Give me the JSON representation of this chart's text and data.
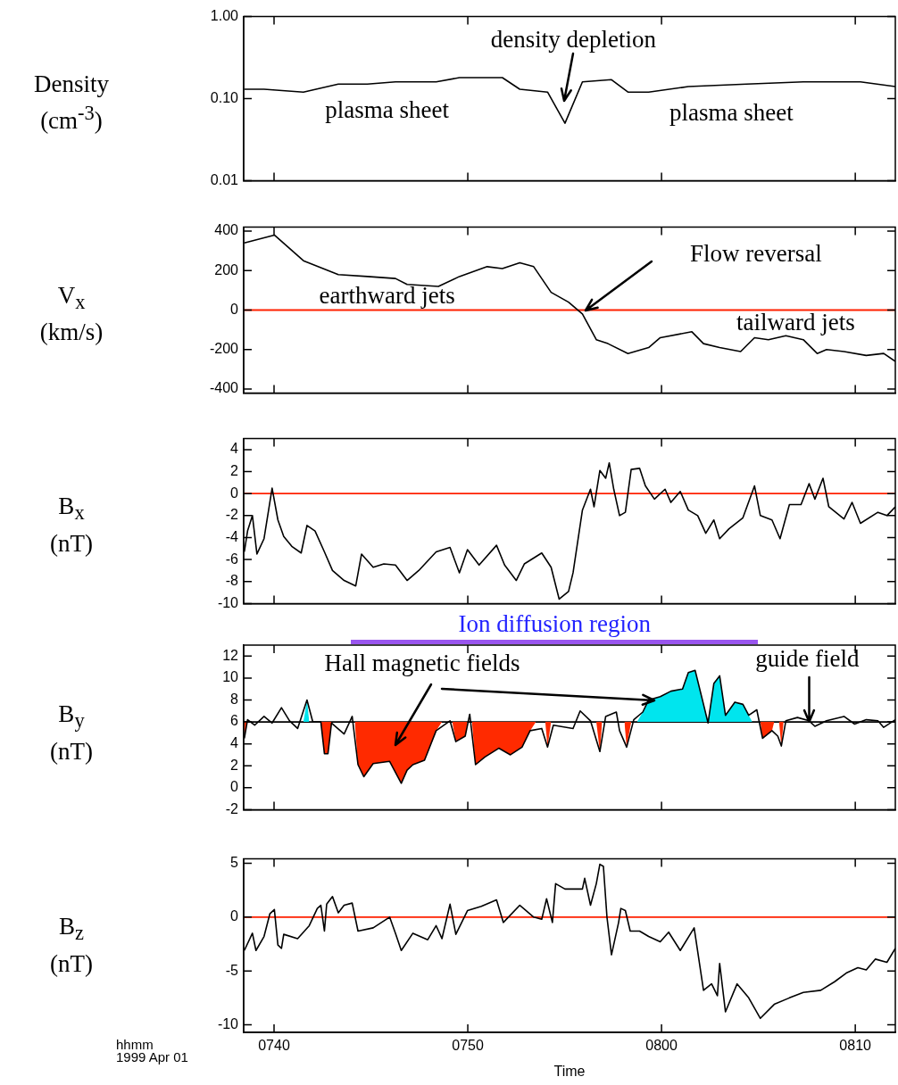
{
  "chart_data": [
    {
      "type": "line",
      "ylabel": "Density (cm$^{-3}$)",
      "log": "y",
      "xlim": [
        "1999-04-01T07:38:26",
        "1999-04-01T08:12:04"
      ],
      "xticks": [
        {
          "value": "1999-04-01T07:40",
          "label": null
        },
        {
          "value": "1999-04-01T07:50",
          "label": null
        },
        {
          "value": "1999-04-01T08:00",
          "label": null
        },
        {
          "value": "1999-04-01T08:10",
          "label": null
        }
      ],
      "ylim": [
        0.01,
        1
      ],
      "yticks": [
        {
          "value": 0.01,
          "label": "0.01"
        },
        {
          "value": 0.1,
          "label": "0.10"
        },
        {
          "value": 1,
          "label": "1.00"
        }
      ],
      "tick_labels": "y",
      "series": [
        {
          "color": "#000000",
          "x": [
            "1999-04-01T07:38:28",
            "1999-04-01T07:39:29",
            "1999-04-01T07:41:31",
            "1999-04-01T07:43:19",
            "1999-04-01T07:44:49",
            "1999-04-01T07:46:16",
            "1999-04-01T07:48:22",
            "1999-04-01T07:49:34",
            "1999-04-01T07:51:47",
            "1999-04-01T07:52:41",
            "1999-04-01T07:54:07",
            "1999-04-01T07:55:01",
            "1999-04-01T07:55:55",
            "1999-04-01T07:57:25",
            "1999-04-01T07:58:16",
            "1999-04-01T07:59:20",
            "1999-04-01T08:01:23",
            "1999-04-01T08:04:23",
            "1999-04-01T08:07:19",
            "1999-04-01T08:10:16",
            "1999-04-01T08:12:04"
          ],
          "values": [
            0.13,
            0.13,
            0.12,
            0.15,
            0.15,
            0.16,
            0.16,
            0.18,
            0.18,
            0.13,
            0.12,
            0.05,
            0.16,
            0.17,
            0.12,
            0.12,
            0.14,
            0.15,
            0.16,
            0.16,
            0.14
          ]
        }
      ],
      "annotations": [
        "plasma sheet",
        "density depletion",
        "plasma sheet"
      ]
    },
    {
      "type": "line",
      "ylabel": "V$_{x}$ (km/s)",
      "xlim": [
        "1999-04-01T07:38:26",
        "1999-04-01T08:12:04"
      ],
      "xticks": [
        {
          "value": "1999-04-01T07:40",
          "label": null
        },
        {
          "value": "1999-04-01T07:50",
          "label": null
        },
        {
          "value": "1999-04-01T08:00",
          "label": null
        },
        {
          "value": "1999-04-01T08:10",
          "label": null
        }
      ],
      "ylim": [
        -420,
        420
      ],
      "yticks": [
        -400,
        -200,
        0,
        200,
        400
      ],
      "tick_labels": "y",
      "series": [
        {
          "color": "#000000",
          "x": [
            "1999-04-01T07:38:28",
            "1999-04-01T07:40:01",
            "1999-04-01T07:41:31",
            "1999-04-01T07:43:19",
            "1999-04-01T07:44:49",
            "1999-04-01T07:46:16",
            "1999-04-01T07:46:52",
            "1999-04-01T07:48:29",
            "1999-04-01T07:49:34",
            "1999-04-01T07:51:00",
            "1999-04-01T07:51:47",
            "1999-04-01T07:52:41",
            "1999-04-01T07:53:24",
            "1999-04-01T07:54:18",
            "1999-04-01T07:55:12",
            "1999-04-01T07:55:55",
            "1999-04-01T07:56:38",
            "1999-04-01T07:57:14",
            "1999-04-01T07:58:16",
            "1999-04-01T07:59:20",
            "1999-04-01T07:59:56",
            "1999-04-01T08:01:34",
            "1999-04-01T08:02:10",
            "1999-04-01T08:03:00",
            "1999-04-01T08:04:05",
            "1999-04-01T08:04:48",
            "1999-04-01T08:05:31",
            "1999-04-01T08:06:25",
            "1999-04-01T08:07:19",
            "1999-04-01T08:08:02",
            "1999-04-01T08:08:31",
            "1999-04-01T08:09:25",
            "1999-04-01T08:10:34",
            "1999-04-01T08:11:28",
            "1999-04-01T08:12:04"
          ],
          "values": [
            340,
            380,
            250,
            180,
            170,
            160,
            130,
            120,
            170,
            220,
            210,
            240,
            220,
            90,
            40,
            -20,
            -150,
            -170,
            -220,
            -190,
            -140,
            -110,
            -170,
            -190,
            -210,
            -140,
            -150,
            -130,
            -150,
            -220,
            -200,
            -210,
            -230,
            -220,
            -260
          ]
        }
      ],
      "ref_lines": [
        {
          "axis": "y",
          "value": 0,
          "color": "#ff2000"
        }
      ],
      "annotations": [
        "earthward jets",
        "Flow reversal",
        "tailward jets"
      ]
    },
    {
      "type": "line",
      "ylabel": "B$_{x}$ (nT)",
      "xlim": [
        "1999-04-01T07:38:26",
        "1999-04-01T08:12:04"
      ],
      "xticks": [
        {
          "value": "1999-04-01T07:40",
          "label": null
        },
        {
          "value": "1999-04-01T07:50",
          "label": null
        },
        {
          "value": "1999-04-01T08:00",
          "label": null
        },
        {
          "value": "1999-04-01T08:10",
          "label": null
        }
      ],
      "ylim": [
        -10,
        5
      ],
      "yticks": [
        -10,
        -8,
        -6,
        -4,
        -2,
        0,
        2,
        4
      ],
      "tick_labels": "y",
      "series": [
        {
          "color": "#000000",
          "x": [
            "1999-04-01T07:38:28",
            "1999-04-01T07:38:38",
            "1999-04-01T07:38:53",
            "1999-04-01T07:39:07",
            "1999-04-01T07:39:29",
            "1999-04-01T07:39:54",
            "1999-04-01T07:40:12",
            "1999-04-01T07:40:30",
            "1999-04-01T07:40:55",
            "1999-04-01T07:41:24",
            "1999-04-01T07:41:42",
            "1999-04-01T07:42:07",
            "1999-04-01T07:42:36",
            "1999-04-01T07:43:01",
            "1999-04-01T07:43:37",
            "1999-04-01T07:44:13",
            "1999-04-01T07:44:31",
            "1999-04-01T07:45:07",
            "1999-04-01T07:45:40",
            "1999-04-01T07:46:16",
            "1999-04-01T07:46:52",
            "1999-04-01T07:47:28",
            "1999-04-01T07:48:22",
            "1999-04-01T07:49:05",
            "1999-04-01T07:49:34",
            "1999-04-01T07:49:59",
            "1999-04-01T07:50:35",
            "1999-04-01T07:51:29",
            "1999-04-01T07:51:54",
            "1999-04-01T07:52:30",
            "1999-04-01T07:52:55",
            "1999-04-01T07:53:49",
            "1999-04-01T07:54:18",
            "1999-04-01T07:54:43",
            "1999-04-01T07:55:12",
            "1999-04-01T07:55:26",
            "1999-04-01T07:55:55",
            "1999-04-01T07:56:20",
            "1999-04-01T07:56:31",
            "1999-04-01T07:56:49",
            "1999-04-01T07:57:07",
            "1999-04-01T07:57:18",
            "1999-04-01T07:57:32",
            "1999-04-01T07:57:50",
            "1999-04-01T07:58:08",
            "1999-04-01T07:58:26",
            "1999-04-01T07:58:52",
            "1999-04-01T07:59:10",
            "1999-04-01T07:59:38",
            "1999-04-01T08:00:11",
            "1999-04-01T08:00:29",
            "1999-04-01T08:00:58",
            "1999-04-01T08:01:23",
            "1999-04-01T08:01:52",
            "1999-04-01T08:02:17",
            "1999-04-01T08:02:42",
            "1999-04-01T08:03:00",
            "1999-04-01T08:03:29",
            "1999-04-01T08:04:12",
            "1999-04-01T08:04:48",
            "1999-04-01T08:05:06",
            "1999-04-01T08:05:42",
            "1999-04-01T08:06:07",
            "1999-04-01T08:06:36",
            "1999-04-01T08:07:12",
            "1999-04-01T08:07:37",
            "1999-04-01T08:07:55",
            "1999-04-01T08:08:20",
            "1999-04-01T08:08:38",
            "1999-04-01T08:09:25",
            "1999-04-01T08:09:50",
            "1999-04-01T08:10:16",
            "1999-04-01T08:11:10",
            "1999-04-01T08:11:38",
            "1999-04-01T08:12:04"
          ],
          "values": [
            -5.3,
            -3.4,
            -2.0,
            -5.5,
            -4.1,
            0.5,
            -2.4,
            -3.9,
            -4.8,
            -5.4,
            -2.9,
            -3.4,
            -5.3,
            -7.0,
            -7.9,
            -8.4,
            -5.5,
            -6.7,
            -6.4,
            -6.5,
            -7.9,
            -7.0,
            -5.3,
            -4.9,
            -7.2,
            -5.1,
            -6.5,
            -4.7,
            -6.5,
            -7.9,
            -6.4,
            -5.4,
            -6.7,
            -9.6,
            -8.9,
            -7.2,
            -1.5,
            0.4,
            -1.2,
            2.1,
            1.4,
            2.8,
            0.4,
            -2.0,
            -1.7,
            2.2,
            2.3,
            0.7,
            -0.5,
            0.4,
            -0.8,
            0.2,
            -1.5,
            -2.0,
            -3.6,
            -2.4,
            -4.1,
            -3.2,
            -2.2,
            0.7,
            -2.0,
            -2.4,
            -4.1,
            -1.0,
            -1.0,
            0.9,
            -0.5,
            1.4,
            -1.2,
            -2.3,
            -0.8,
            -2.7,
            -1.7,
            -2.0,
            -1.2
          ]
        }
      ],
      "ref_lines": [
        {
          "axis": "y",
          "value": 0,
          "color": "#ff2000"
        }
      ]
    },
    {
      "type": "line",
      "ylabel": "B$_{y}$ (nT)",
      "xlim": [
        "1999-04-01T07:38:26",
        "1999-04-01T08:12:04"
      ],
      "xticks": [
        {
          "value": "1999-04-01T07:40",
          "label": null
        },
        {
          "value": "1999-04-01T07:50",
          "label": null
        },
        {
          "value": "1999-04-01T08:00",
          "label": null
        },
        {
          "value": "1999-04-01T08:10",
          "label": null
        }
      ],
      "ylim": [
        -2,
        13
      ],
      "yticks": [
        -2,
        0,
        2,
        4,
        6,
        8,
        10,
        12
      ],
      "tick_labels": "y",
      "series": [
        {
          "color": "#000000",
          "x": [
            "1999-04-01T07:38:28",
            "1999-04-01T07:38:38",
            "1999-04-01T07:39:00",
            "1999-04-01T07:39:29",
            "1999-04-01T07:39:54",
            "1999-04-01T07:40:23",
            "1999-04-01T07:40:48",
            "1999-04-01T07:41:13",
            "1999-04-01T07:41:42",
            "1999-04-01T07:42:00",
            "1999-04-01T07:42:25",
            "1999-04-01T07:42:36",
            "1999-04-01T07:42:47",
            "1999-04-01T07:42:58",
            "1999-04-01T07:43:37",
            "1999-04-01T07:44:02",
            "1999-04-01T07:44:20",
            "1999-04-01T07:44:38",
            "1999-04-01T07:45:07",
            "1999-04-01T07:45:58",
            "1999-04-01T07:46:34",
            "1999-04-01T07:46:52",
            "1999-04-01T07:47:10",
            "1999-04-01T07:47:46",
            "1999-04-01T07:48:22",
            "1999-04-01T07:49:05",
            "1999-04-01T07:49:23",
            "1999-04-01T07:49:52",
            "1999-04-01T07:50:06",
            "1999-04-01T07:50:24",
            "1999-04-01T07:50:53",
            "1999-04-01T07:51:36",
            "1999-04-01T07:52:12",
            "1999-04-01T07:52:48",
            "1999-04-01T07:53:13",
            "1999-04-01T07:53:49",
            "1999-04-01T07:54:07",
            "1999-04-01T07:54:25",
            "1999-04-01T07:55:26",
            "1999-04-01T07:55:48",
            "1999-04-01T07:56:20",
            "1999-04-01T07:56:49",
            "1999-04-01T07:57:07",
            "1999-04-01T07:57:40",
            "1999-04-01T07:57:50",
            "1999-04-01T07:58:12",
            "1999-04-01T07:58:34",
            "1999-04-01T07:59:02",
            "1999-04-01T07:59:20",
            "1999-04-01T07:59:56",
            "1999-04-01T08:00:29",
            "1999-04-01T08:01:05",
            "1999-04-01T08:01:23",
            "1999-04-01T08:01:44",
            "1999-04-01T08:02:10",
            "1999-04-01T08:02:24",
            "1999-04-01T08:02:42",
            "1999-04-01T08:03:00",
            "1999-04-01T08:03:18",
            "1999-04-01T08:03:47",
            "1999-04-01T08:04:12",
            "1999-04-01T08:04:30",
            "1999-04-01T08:04:55",
            "1999-04-01T08:05:13",
            "1999-04-01T08:05:42",
            "1999-04-01T08:06:00",
            "1999-04-01T08:06:11",
            "1999-04-01T08:06:25",
            "1999-04-01T08:07:01",
            "1999-04-01T08:07:37",
            "1999-04-01T08:07:55",
            "1999-04-01T08:08:31",
            "1999-04-01T08:09:25",
            "1999-04-01T08:09:58",
            "1999-04-01T08:10:34",
            "1999-04-01T08:11:10",
            "1999-04-01T08:11:28",
            "1999-04-01T08:12:04"
          ],
          "values": [
            4.5,
            6.2,
            5.7,
            6.5,
            5.9,
            7.3,
            6.1,
            5.4,
            8.0,
            6.0,
            6.0,
            3.1,
            3.1,
            5.9,
            4.9,
            6.5,
            2.1,
            1.0,
            2.2,
            2.4,
            0.4,
            1.6,
            2.1,
            2.5,
            5.2,
            6.1,
            4.2,
            4.7,
            6.7,
            2.1,
            2.8,
            3.6,
            3.0,
            3.7,
            5.2,
            5.4,
            3.7,
            5.7,
            5.4,
            7.0,
            6.1,
            3.3,
            6.5,
            6.9,
            5.2,
            3.7,
            6.2,
            6.9,
            8.0,
            8.3,
            8.8,
            9.0,
            10.5,
            10.7,
            7.6,
            5.9,
            9.5,
            10.2,
            6.6,
            7.8,
            7.6,
            6.6,
            7.1,
            4.5,
            5.2,
            4.7,
            3.8,
            6.1,
            6.4,
            6.1,
            5.6,
            6.1,
            6.5,
            5.8,
            6.2,
            6.1,
            5.5,
            6.2
          ]
        },
        {
          "type": "area",
          "color": "#ff2a00",
          "x": [
            "1999-04-01T07:38:28",
            "1999-04-01T07:38:35",
            "1999-04-01T07:39:36",
            "1999-04-01T07:42:25",
            "1999-04-01T07:42:36",
            "1999-04-01T07:42:47",
            "1999-04-01T07:42:58",
            "1999-04-01T07:43:30",
            "1999-04-01T07:44:10",
            "1999-04-01T07:44:20",
            "1999-04-01T07:44:38",
            "1999-04-01T07:45:07",
            "1999-04-01T07:45:58",
            "1999-04-01T07:46:34",
            "1999-04-01T07:46:52",
            "1999-04-01T07:47:10",
            "1999-04-01T07:47:46",
            "1999-04-01T07:48:22",
            "1999-04-01T07:48:40",
            "1999-04-01T07:48:54",
            "1999-04-01T07:49:12",
            "1999-04-01T07:49:23",
            "1999-04-01T07:49:52",
            "1999-04-01T07:49:59",
            "1999-04-01T07:50:02",
            "1999-04-01T07:50:13",
            "1999-04-01T07:50:24",
            "1999-04-01T07:50:53",
            "1999-04-01T07:51:36",
            "1999-04-01T07:52:12",
            "1999-04-01T07:52:48",
            "1999-04-01T07:53:13",
            "1999-04-01T07:53:31",
            "1999-04-01T07:53:46",
            "1999-04-01T07:54:00",
            "1999-04-01T07:54:07",
            "1999-04-01T07:54:18",
            "1999-04-01T07:55:48",
            "1999-04-01T07:56:38",
            "1999-04-01T07:56:49",
            "1999-04-01T07:56:56",
            "1999-04-01T07:57:36",
            "1999-04-01T07:58:05",
            "1999-04-01T07:58:12",
            "1999-04-01T07:58:26",
            "1999-04-01T08:00:00",
            "1999-04-01T08:05:06",
            "1999-04-01T08:05:13",
            "1999-04-01T08:05:42",
            "1999-04-01T08:05:49",
            "1999-04-01T08:05:56",
            "1999-04-01T08:06:04",
            "1999-04-01T08:06:11",
            "1999-04-01T08:06:18"
          ],
          "values": [
            4.5,
            6.0,
            null,
            6.0,
            3.1,
            3.1,
            5.9,
            null,
            6.0,
            2.1,
            1.0,
            2.2,
            2.4,
            0.4,
            1.6,
            2.1,
            2.5,
            5.2,
            6.0,
            null,
            6.0,
            4.2,
            4.7,
            6.0,
            null,
            6.0,
            2.1,
            2.8,
            3.6,
            3.0,
            3.7,
            5.2,
            6.0,
            null,
            6.0,
            3.7,
            6.0,
            null,
            6.0,
            3.3,
            6.0,
            null,
            6.0,
            3.7,
            6.0,
            null,
            6.0,
            4.5,
            5.2,
            6.0,
            null,
            6.0,
            3.8,
            6.0
          ]
        },
        {
          "type": "area",
          "color": "#00e5ee",
          "x": [
            "1999-04-01T07:41:31",
            "1999-04-01T07:41:42",
            "1999-04-01T07:41:49",
            "1999-04-01T07:45:00",
            "1999-04-01T07:58:44",
            "1999-04-01T07:59:02",
            "1999-04-01T07:59:20",
            "1999-04-01T07:59:56",
            "1999-04-01T08:00:29",
            "1999-04-01T08:01:05",
            "1999-04-01T08:01:23",
            "1999-04-01T08:01:44",
            "1999-04-01T08:02:10",
            "1999-04-01T08:02:24",
            "1999-04-01T08:02:42",
            "1999-04-01T08:03:00",
            "1999-04-01T08:03:18",
            "1999-04-01T08:03:47",
            "1999-04-01T08:04:12",
            "1999-04-01T08:04:30",
            "1999-04-01T08:04:41"
          ],
          "values": [
            6.0,
            8.0,
            6.0,
            null,
            6.0,
            6.9,
            8.0,
            8.3,
            8.8,
            9.0,
            10.5,
            10.7,
            7.6,
            6.0,
            9.5,
            10.2,
            6.6,
            7.8,
            7.6,
            6.6,
            6.0
          ]
        }
      ],
      "ref_lines": [
        {
          "axis": "y",
          "value": 6,
          "color": "#000000"
        }
      ],
      "annotations": [
        "Ion diffusion region",
        "Hall magnetic fields",
        {
          "text": "guide field",
          "x": "1999-04-01T08:07:37",
          "y": 6
        }
      ]
    },
    {
      "type": "line",
      "ylabel": "B$_{z}$ (nT)",
      "xlabel": "Time",
      "xlim": [
        "1999-04-01T07:38:26",
        "1999-04-01T08:12:04"
      ],
      "xticks": [
        {
          "value": "1999-04-01T07:40",
          "label": "0740"
        },
        {
          "value": "1999-04-01T07:50",
          "label": "0750"
        },
        {
          "value": "1999-04-01T08:00",
          "label": "0800"
        },
        {
          "value": "1999-04-01T08:10",
          "label": "0810"
        }
      ],
      "ylim": [
        -10.7,
        5.4
      ],
      "yticks": [
        -10,
        -5,
        0,
        5
      ],
      "series": [
        {
          "color": "#000000",
          "x": [
            "1999-04-01T07:38:28",
            "1999-04-01T07:38:53",
            "1999-04-01T07:39:04",
            "1999-04-01T07:39:29",
            "1999-04-01T07:39:47",
            "1999-04-01T07:40:01",
            "1999-04-01T07:40:12",
            "1999-04-01T07:40:23",
            "1999-04-01T07:40:30",
            "1999-04-01T07:41:13",
            "1999-04-01T07:41:49",
            "1999-04-01T07:42:14",
            "1999-04-01T07:42:25",
            "1999-04-01T07:42:36",
            "1999-04-01T07:42:43",
            "1999-04-01T07:43:01",
            "1999-04-01T07:43:19",
            "1999-04-01T07:43:37",
            "1999-04-01T07:44:02",
            "1999-04-01T07:44:20",
            "1999-04-01T07:45:07",
            "1999-04-01T07:45:58",
            "1999-04-01T07:46:16",
            "1999-04-01T07:46:34",
            "1999-04-01T07:47:10",
            "1999-04-01T07:47:56",
            "1999-04-01T07:48:22",
            "1999-04-01T07:48:40",
            "1999-04-01T07:49:05",
            "1999-04-01T07:49:23",
            "1999-04-01T07:49:59",
            "1999-04-01T07:50:42",
            "1999-04-01T07:51:29",
            "1999-04-01T07:51:50",
            "1999-04-01T07:52:41",
            "1999-04-01T07:53:24",
            "1999-04-01T07:53:49",
            "1999-04-01T07:54:04",
            "1999-04-01T07:54:22",
            "1999-04-01T07:54:32",
            "1999-04-01T07:55:01",
            "1999-04-01T07:55:55",
            "1999-04-01T07:56:02",
            "1999-04-01T07:56:20",
            "1999-04-01T07:56:38",
            "1999-04-01T07:56:49",
            "1999-04-01T07:57:00",
            "1999-04-01T07:57:11",
            "1999-04-01T07:57:25",
            "1999-04-01T07:57:47",
            "1999-04-01T07:57:54",
            "1999-04-01T07:58:08",
            "1999-04-01T07:58:23",
            "1999-04-01T07:58:52",
            "1999-04-01T07:59:20",
            "1999-04-01T07:59:56",
            "1999-04-01T08:00:22",
            "1999-04-01T08:00:58",
            "1999-04-01T08:01:41",
            "1999-04-01T08:02:10",
            "1999-04-01T08:02:35",
            "1999-04-01T08:02:53",
            "1999-04-01T08:03:00",
            "1999-04-01T08:03:18",
            "1999-04-01T08:03:54",
            "1999-04-01T08:04:30",
            "1999-04-01T08:05:06",
            "1999-04-01T08:05:49",
            "1999-04-01T08:06:36",
            "1999-04-01T08:07:19",
            "1999-04-01T08:08:13",
            "1999-04-01T08:08:56",
            "1999-04-01T08:09:32",
            "1999-04-01T08:10:08",
            "1999-04-01T08:10:34",
            "1999-04-01T08:11:02",
            "1999-04-01T08:11:38",
            "1999-04-01T08:12:04"
          ],
          "values": [
            -3.1,
            -1.5,
            -3.1,
            -1.8,
            0.3,
            0.7,
            -2.6,
            -2.9,
            -1.6,
            -2.0,
            -0.8,
            0.8,
            1.1,
            -1.3,
            1.2,
            1.9,
            0.4,
            1.1,
            1.3,
            -1.3,
            -1.0,
            0.0,
            -1.5,
            -3.1,
            -1.5,
            -2.1,
            -0.8,
            -2.0,
            1.2,
            -1.6,
            0.6,
            1.0,
            1.6,
            -0.5,
            1.1,
            0.0,
            -0.2,
            1.7,
            -0.5,
            3.1,
            2.6,
            2.6,
            3.6,
            1.1,
            3.1,
            4.9,
            4.7,
            0.0,
            -3.5,
            -0.5,
            0.8,
            0.6,
            -1.3,
            -1.3,
            -1.8,
            -2.3,
            -1.4,
            -3.1,
            -1.0,
            -6.8,
            -6.2,
            -7.3,
            -4.3,
            -8.8,
            -6.2,
            -7.5,
            -9.4,
            -8.1,
            -7.5,
            -7.0,
            -6.8,
            -6.0,
            -5.2,
            -4.7,
            -4.9,
            -3.9,
            -4.2,
            -2.9
          ]
        }
      ],
      "ref_lines": [
        {
          "axis": "y",
          "value": 0,
          "color": "#ff2000"
        }
      ],
      "annotations": [
        "hhmm",
        "1999 Apr 01"
      ]
    }
  ]
}
